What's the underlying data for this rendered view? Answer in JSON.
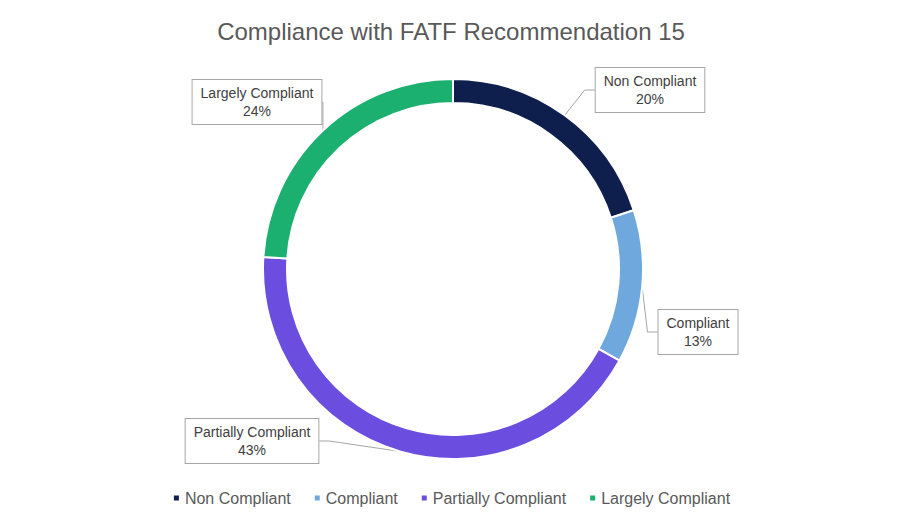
{
  "chart_data": {
    "type": "pie",
    "title": "Compliance with FATF Recommendation 15",
    "categories": [
      "Non Compliant",
      "Compliant",
      "Partially Compliant",
      "Largely Compliant"
    ],
    "values": [
      20,
      13,
      43,
      24
    ],
    "value_labels": [
      "20%",
      "13%",
      "43%",
      "24%"
    ],
    "colors": [
      "#0e1f4d",
      "#6fa8dc",
      "#6b4de0",
      "#1bb070"
    ],
    "legend": "bottom",
    "data_labels": true
  }
}
